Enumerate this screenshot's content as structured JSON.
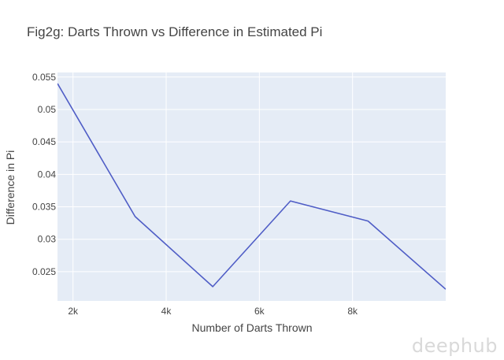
{
  "chart_data": {
    "type": "line",
    "title": "Fig2g: Darts Thrown vs Difference in Estimated Pi",
    "xlabel": "Number of Darts Thrown",
    "ylabel": "Difference in Pi",
    "x": [
      1667,
      3333,
      5000,
      6667,
      8333,
      10000
    ],
    "series": [
      {
        "values": [
          0.054,
          0.0335,
          0.0227,
          0.0359,
          0.0328,
          0.0223
        ]
      }
    ],
    "xlim": [
      1667,
      10000
    ],
    "ylim": [
      0.0205,
      0.0557
    ],
    "xticks": [
      2000,
      4000,
      6000,
      8000
    ],
    "xtick_labels": [
      "2k",
      "4k",
      "6k",
      "8k"
    ],
    "yticks": [
      0.025,
      0.03,
      0.035,
      0.04,
      0.045,
      0.05,
      0.055
    ],
    "ytick_labels": [
      "0.025",
      "0.03",
      "0.035",
      "0.04",
      "0.045",
      "0.05",
      "0.055"
    ],
    "grid": true,
    "line_color": "#4f5dc6",
    "plot_background": "#e5ecf6"
  },
  "watermark": "deephub"
}
